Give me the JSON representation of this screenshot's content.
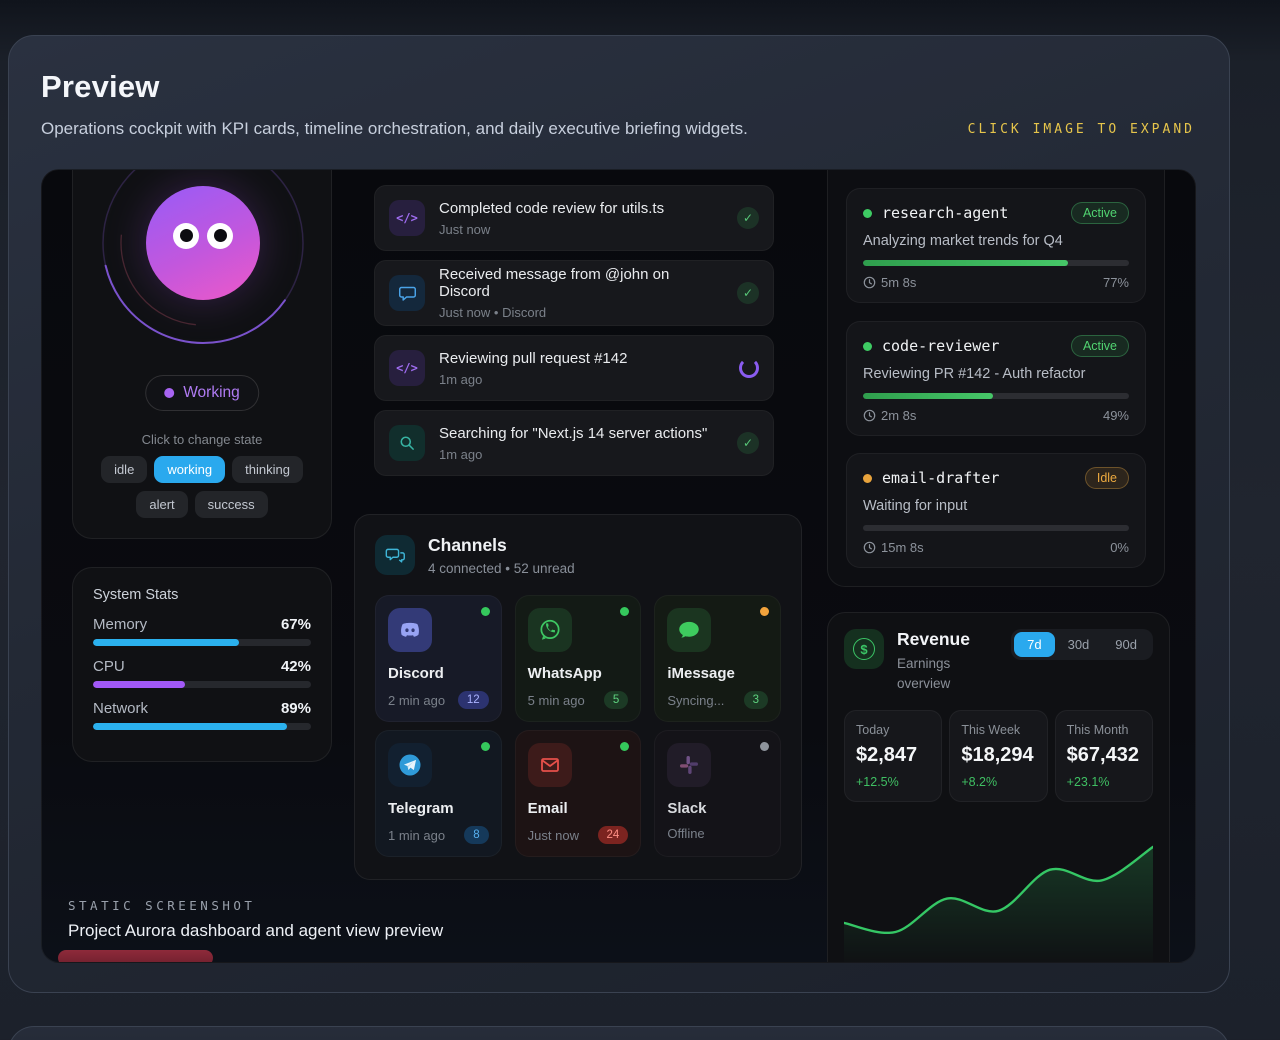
{
  "header": {
    "title": "Preview",
    "subtitle": "Operations cockpit with KPI cards, timeline orchestration, and daily executive briefing widgets.",
    "expand_hint": "CLICK IMAGE TO EXPAND"
  },
  "agent_panel": {
    "status_label": "Working",
    "hint": "Click to change state",
    "states": [
      {
        "label": "idle",
        "active": false
      },
      {
        "label": "working",
        "active": true
      },
      {
        "label": "thinking",
        "active": false
      },
      {
        "label": "alert",
        "active": false
      },
      {
        "label": "success",
        "active": false
      }
    ]
  },
  "system_stats": {
    "title": "System Stats",
    "rows": [
      {
        "label": "Memory",
        "value": "67%",
        "pct": 67
      },
      {
        "label": "CPU",
        "value": "42%",
        "pct": 42
      },
      {
        "label": "Network",
        "value": "89%",
        "pct": 89
      }
    ]
  },
  "activity": {
    "items": [
      {
        "icon": "code-icon",
        "title": "Completed code review for utils.ts",
        "meta": "Just now",
        "status": "done"
      },
      {
        "icon": "chat-icon",
        "title": "Received message from @john on Discord",
        "meta": "Just now  •  Discord",
        "status": "done"
      },
      {
        "icon": "code-icon",
        "title": "Reviewing pull request #142",
        "meta": "1m ago",
        "status": "in-progress"
      },
      {
        "icon": "search-icon",
        "title": "Searching for \"Next.js 14 server actions\"",
        "meta": "1m ago",
        "status": "done"
      }
    ]
  },
  "channels": {
    "title": "Channels",
    "subtitle": "4 connected • 52 unread",
    "items": [
      {
        "name": "Discord",
        "meta": "2 min ago",
        "badge": "12",
        "status_dot": "online"
      },
      {
        "name": "WhatsApp",
        "meta": "5 min ago",
        "badge": "5",
        "status_dot": "online"
      },
      {
        "name": "iMessage",
        "meta": "Syncing...",
        "badge": "3",
        "status_dot": "syncing"
      },
      {
        "name": "Telegram",
        "meta": "1 min ago",
        "badge": "8",
        "status_dot": "online"
      },
      {
        "name": "Email",
        "meta": "Just now",
        "badge": "24",
        "status_dot": "online"
      },
      {
        "name": "Slack",
        "meta": "Offline",
        "badge": "",
        "status_dot": "offline"
      }
    ]
  },
  "agents": [
    {
      "name": "research-agent",
      "badge": "Active",
      "task": "Analyzing market trends for Q4",
      "elapsed": "5m 8s",
      "percent": "77%",
      "pct": 77
    },
    {
      "name": "code-reviewer",
      "badge": "Active",
      "task": "Reviewing PR #142 - Auth refactor",
      "elapsed": "2m 8s",
      "percent": "49%",
      "pct": 49
    },
    {
      "name": "email-drafter",
      "badge": "Idle",
      "task": "Waiting for input",
      "elapsed": "15m 8s",
      "percent": "0%",
      "pct": 0
    }
  ],
  "revenue": {
    "title": "Revenue",
    "subtitle": "Earnings overview",
    "tabs": [
      {
        "label": "7d",
        "active": true
      },
      {
        "label": "30d",
        "active": false
      },
      {
        "label": "90d",
        "active": false
      }
    ],
    "kpis": [
      {
        "label": "Today",
        "value": "$2,847",
        "delta": "+12.5%"
      },
      {
        "label": "This Week",
        "value": "$18,294",
        "delta": "+8.2%"
      },
      {
        "label": "This Month",
        "value": "$67,432",
        "delta": "+23.1%"
      }
    ]
  },
  "chart_data": {
    "type": "area",
    "title": "Revenue earnings sparkline (7d)",
    "x": [
      0,
      1,
      2,
      3,
      4,
      5,
      6
    ],
    "series": [
      {
        "name": "Earnings",
        "values": [
          29,
          23,
          45,
          37,
          64,
          57,
          79
        ]
      }
    ],
    "ylim": [
      0,
      100
    ],
    "axes_visible": false,
    "grid": false,
    "legend": false,
    "line_color": "#35c765",
    "fill_color": "rgba(53,199,101,0.18)"
  },
  "footer": {
    "kicker": "STATIC SCREENSHOT",
    "caption": "Project Aurora dashboard and agent view preview"
  },
  "colors": {
    "accent_cyan": "#2aa9ee",
    "accent_purple": "#a864f2",
    "accent_pink": "#ee58c8",
    "accent_green": "#3fbf63",
    "accent_amber": "#e8a33c",
    "expand_hint_yellow": "#e6c54b",
    "memory_bar": "#2bb1ee",
    "cpu_bar": "#a259f7",
    "network_bar": "#2bb1ee"
  }
}
